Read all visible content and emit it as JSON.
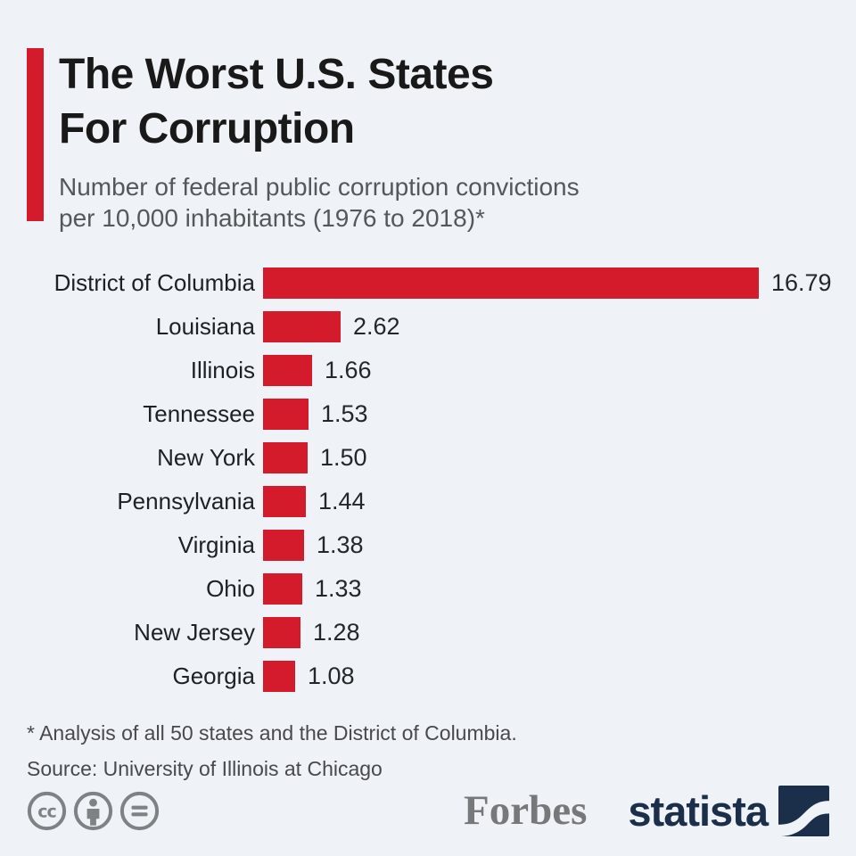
{
  "page": {
    "background_color": "#eff3f7",
    "accent_color": "#d41b2c"
  },
  "header": {
    "title_line1": "The Worst U.S. States",
    "title_line2": "For Corruption",
    "subtitle_line1": "Number of federal public corruption convictions",
    "subtitle_line2": "per 10,000 inhabitants (1976 to 2018)*"
  },
  "chart_data": {
    "type": "bar",
    "orientation": "horizontal",
    "title": "The Worst U.S. States For Corruption",
    "xlabel": "",
    "ylabel": "",
    "xlim": [
      0,
      16.79
    ],
    "grid": false,
    "legend": false,
    "bar_color": "#d41b2c",
    "value_label_decimals": 2,
    "categories": [
      "District of Columbia",
      "Louisiana",
      "Illinois",
      "Tennessee",
      "New York",
      "Pennsylvania",
      "Virginia",
      "Ohio",
      "New Jersey",
      "Georgia"
    ],
    "values": [
      16.79,
      2.62,
      1.66,
      1.53,
      1.5,
      1.44,
      1.38,
      1.33,
      1.28,
      1.08
    ]
  },
  "footer": {
    "footnote": "* Analysis of all 50 states and the District of Columbia.",
    "source": "Source: University of Illinois at Chicago",
    "license_icons": [
      "cc-icon",
      "attribution-icon",
      "equals-icon"
    ],
    "brands": {
      "forbes": "Forbes",
      "statista": "statista"
    },
    "icon_color": "#7e8285",
    "statista_navy": "#1b2e4a"
  }
}
